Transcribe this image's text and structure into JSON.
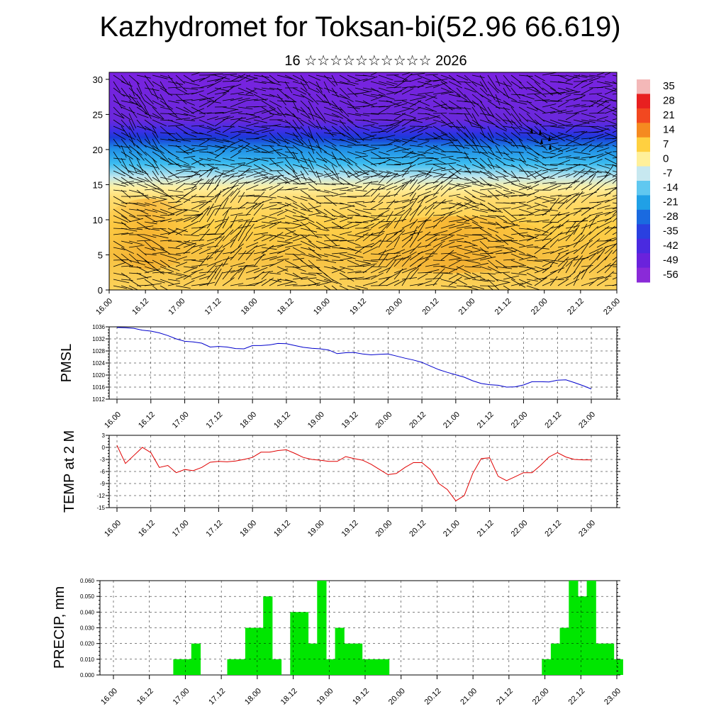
{
  "header": {
    "title": "Kazhydromet for Toksan-bi(52.96 66.619)",
    "subtitle": "16 ☆☆☆☆☆☆☆☆☆☆ 2026"
  },
  "colors": {
    "pmsl_line": "#0000cc",
    "temp_line": "#e00000",
    "precip_fill": "#00e600",
    "wind_barb": "#000000"
  },
  "chart_data": [
    {
      "id": "cross-section",
      "type": "heatmap",
      "title": "Kazhydromet for Toksan-bi(52.96 66.619)",
      "xlabel": "",
      "ylabel": "",
      "x_tick_labels": [
        "16.00",
        "16.12",
        "17.00",
        "17.12",
        "18.00",
        "18.12",
        "19.00",
        "19.12",
        "20.00",
        "20.12",
        "21.00",
        "21.12",
        "22.00",
        "22.12",
        "23.00"
      ],
      "y_ticks": [
        0,
        5,
        10,
        15,
        20,
        25,
        30
      ],
      "ylim": [
        0,
        31
      ],
      "colorbar_labels": [
        35,
        28,
        21,
        14,
        7,
        0,
        -7,
        -14,
        -21,
        -28,
        -35,
        -42,
        -49,
        -56
      ],
      "temperature_layers_c": [
        {
          "height_range": [
            0,
            12
          ],
          "value": 0
        },
        {
          "height_range": [
            12,
            15
          ],
          "value": -7
        },
        {
          "height_range": [
            15,
            19
          ],
          "value": -28
        },
        {
          "height_range": [
            19,
            22
          ],
          "value": -49
        },
        {
          "height_range": [
            22,
            31
          ],
          "value": -56
        }
      ],
      "overlay": "wind barbs"
    },
    {
      "id": "pmsl",
      "type": "line",
      "ylabel": "PMSL",
      "ylim": [
        1012,
        1036
      ],
      "y_ticks": [
        1012,
        1016,
        1020,
        1024,
        1028,
        1032,
        1036
      ],
      "x_tick_labels": [
        "16.00",
        "16.12",
        "17.00",
        "17.12",
        "18.00",
        "18.12",
        "19.00",
        "19.12",
        "20.00",
        "20.12",
        "21.00",
        "21.12",
        "22.00",
        "22.12",
        "23.00"
      ],
      "x_hours": [
        0,
        3,
        6,
        9,
        12,
        15,
        18,
        21,
        24,
        27,
        30,
        33,
        36,
        39,
        42,
        45,
        48,
        51,
        54,
        57,
        60,
        63,
        66,
        69,
        72,
        75,
        78,
        81,
        84,
        87,
        90,
        93,
        96,
        99,
        102,
        105,
        108,
        111,
        114,
        117,
        120,
        123,
        126,
        129,
        132,
        135,
        138,
        141,
        144,
        147,
        150,
        153,
        156,
        159,
        162,
        165,
        168
      ],
      "values": [
        1035.8,
        1035.7,
        1035.5,
        1034.9,
        1034.6,
        1034.0,
        1033.1,
        1032.0,
        1031.2,
        1031.0,
        1030.6,
        1029.3,
        1029.5,
        1029.3,
        1028.8,
        1028.7,
        1029.8,
        1029.8,
        1030.0,
        1030.5,
        1030.4,
        1029.8,
        1029.2,
        1028.9,
        1028.7,
        1028.3,
        1027.1,
        1027.4,
        1027.5,
        1027.0,
        1026.7,
        1026.9,
        1027.0,
        1026.3,
        1025.6,
        1025.0,
        1024.2,
        1023.0,
        1021.8,
        1020.9,
        1020.1,
        1019.3,
        1018.1,
        1017.2,
        1016.8,
        1016.6,
        1016.0,
        1016.1,
        1016.7,
        1017.8,
        1017.8,
        1017.7,
        1018.3,
        1018.4,
        1017.5,
        1016.5,
        1015.4
      ]
    },
    {
      "id": "temp2m",
      "type": "line",
      "ylabel": "TEMP at 2 M",
      "ylim": [
        -15,
        3
      ],
      "y_ticks": [
        -15,
        -12,
        -9,
        -6,
        -3,
        0,
        3
      ],
      "x_tick_labels": [
        "16.00",
        "16.12",
        "17.00",
        "17.12",
        "18.00",
        "18.12",
        "19.00",
        "19.12",
        "20.00",
        "20.12",
        "21.00",
        "21.12",
        "22.00",
        "22.12",
        "23.00"
      ],
      "x_hours": [
        0,
        3,
        6,
        9,
        12,
        15,
        18,
        21,
        24,
        27,
        30,
        33,
        36,
        39,
        42,
        45,
        48,
        51,
        54,
        57,
        60,
        63,
        66,
        69,
        72,
        75,
        78,
        81,
        84,
        87,
        90,
        93,
        96,
        99,
        102,
        105,
        108,
        111,
        114,
        117,
        120,
        123,
        126,
        129,
        132,
        135,
        138,
        141,
        144,
        147,
        150,
        153,
        156,
        159,
        162,
        165,
        168
      ],
      "values": [
        0.5,
        -4.0,
        -2.0,
        0.0,
        -1.3,
        -5.0,
        -4.5,
        -6.3,
        -5.5,
        -5.8,
        -5.0,
        -3.7,
        -3.5,
        -3.6,
        -3.4,
        -3.0,
        -2.5,
        -1.2,
        -1.2,
        -0.8,
        -0.6,
        -1.5,
        -2.5,
        -3.0,
        -3.2,
        -3.5,
        -3.5,
        -2.3,
        -2.8,
        -3.2,
        -4.2,
        -5.5,
        -6.8,
        -6.5,
        -5.0,
        -3.8,
        -3.8,
        -5.5,
        -9.0,
        -10.5,
        -13.3,
        -12.0,
        -6.5,
        -2.8,
        -2.6,
        -7.2,
        -8.3,
        -7.3,
        -6.3,
        -6.3,
        -4.5,
        -2.4,
        -1.3,
        -2.4,
        -3.0,
        -3.1,
        -3.1
      ]
    },
    {
      "id": "precip",
      "type": "bar",
      "ylabel": "PRECIP, mm",
      "ylim": [
        0,
        0.06
      ],
      "y_tick_labels": [
        "0.000",
        "0.010",
        "0.020",
        "0.030",
        "0.040",
        "0.050",
        "0.060"
      ],
      "x_tick_labels": [
        "16.00",
        "16.12",
        "17.00",
        "17.12",
        "18.00",
        "18.12",
        "19.00",
        "19.12",
        "20.00",
        "20.12",
        "21.00",
        "21.12",
        "22.00",
        "22.12",
        "23.00"
      ],
      "bin_hours": 3,
      "values": [
        0,
        0,
        0,
        0,
        0,
        0,
        0,
        0,
        0.01,
        0.01,
        0.02,
        0,
        0,
        0,
        0.01,
        0.01,
        0.03,
        0.03,
        0.05,
        0.01,
        0,
        0.04,
        0.04,
        0.02,
        0.06,
        0.01,
        0.03,
        0.02,
        0.02,
        0.01,
        0.01,
        0.01,
        0,
        0,
        0,
        0,
        0,
        0,
        0,
        0,
        0,
        0,
        0,
        0,
        0,
        0,
        0,
        0,
        0,
        0.01,
        0.02,
        0.03,
        0.06,
        0.05,
        0.06,
        0.02,
        0.02,
        0.01
      ]
    }
  ]
}
